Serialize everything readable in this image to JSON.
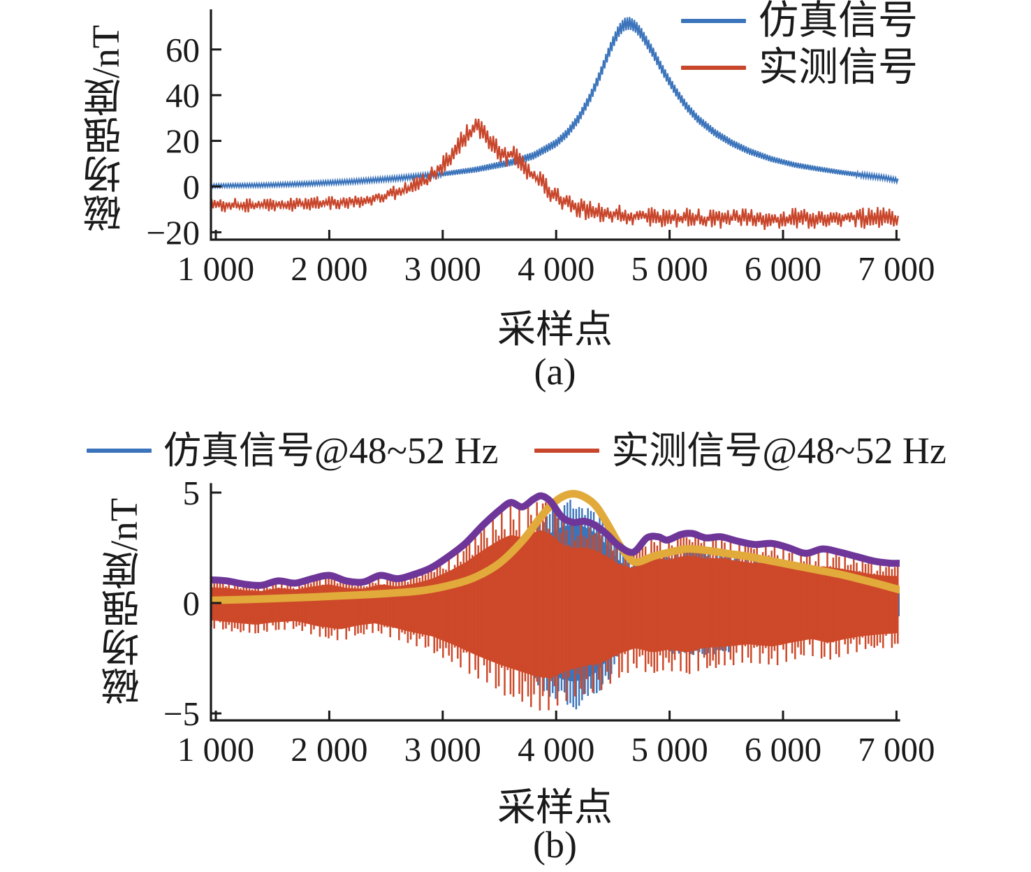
{
  "colors": {
    "simulated_blue": "#3B74BB",
    "measured_red": "#C8462B",
    "measured_red_fill": "#CD4929",
    "envelope_measured_purple": "#6F3699",
    "envelope_simulated_yellow": "#E2A93B",
    "axis_black": "#1a1a1a"
  },
  "chart_data": [
    {
      "id": "a",
      "type": "line",
      "caption": "(a)",
      "xlabel": "采样点",
      "ylabel": "磁场强度/nT",
      "xlim": [
        957,
        7025
      ],
      "ylim": [
        -23,
        77
      ],
      "grid": false,
      "legend_position": "top-right",
      "x_tick_values": [
        1000,
        2000,
        3000,
        4000,
        5000,
        6000,
        7000
      ],
      "x_tick_labels": [
        "1 000",
        "2 000",
        "3 000",
        "4 000",
        "5 000",
        "6 000",
        "7 000"
      ],
      "y_tick_values": [
        -20,
        0,
        20,
        40,
        60
      ],
      "y_tick_labels": [
        "−20",
        "0",
        "20",
        "40",
        "60"
      ],
      "legend": [
        {
          "label": "仿真信号",
          "color": "#3B74BB"
        },
        {
          "label": "实测信号",
          "color": "#C8462B"
        }
      ],
      "series": [
        {
          "name": "仿真信号",
          "style": "oscillating-band",
          "color": "#3B74BB",
          "center_keypoints": [
            [
              957,
              0.3
            ],
            [
              1400,
              0.6
            ],
            [
              1800,
              1.2
            ],
            [
              2200,
              2.2
            ],
            [
              2600,
              3.6
            ],
            [
              3000,
              5.5
            ],
            [
              3300,
              7.5
            ],
            [
              3600,
              10.5
            ],
            [
              3800,
              13.5
            ],
            [
              4000,
              19
            ],
            [
              4100,
              23.5
            ],
            [
              4200,
              30
            ],
            [
              4300,
              39
            ],
            [
              4380,
              48
            ],
            [
              4450,
              57
            ],
            [
              4500,
              63
            ],
            [
              4550,
              68
            ],
            [
              4600,
              71
            ],
            [
              4650,
              71.5
            ],
            [
              4700,
              70
            ],
            [
              4750,
              67
            ],
            [
              4850,
              59
            ],
            [
              4950,
              50
            ],
            [
              5050,
              42
            ],
            [
              5150,
              35
            ],
            [
              5250,
              29.5
            ],
            [
              5400,
              23.5
            ],
            [
              5550,
              19
            ],
            [
              5700,
              15.5
            ],
            [
              5900,
              12
            ],
            [
              6100,
              9.5
            ],
            [
              6300,
              7.8
            ],
            [
              6500,
              6.3
            ],
            [
              6700,
              5
            ],
            [
              6900,
              3.8
            ],
            [
              7025,
              2.5
            ]
          ],
          "ripple_amplitude_keypoints": [
            [
              957,
              0.7
            ],
            [
              3000,
              1.0
            ],
            [
              4000,
              1.8
            ],
            [
              4600,
              2.8
            ],
            [
              5200,
              1.9
            ],
            [
              6000,
              1.2
            ],
            [
              7025,
              0.9
            ]
          ]
        },
        {
          "name": "实测信号",
          "style": "noisy-line",
          "color": "#C8462B",
          "mean_keypoints": [
            [
              957,
              -8
            ],
            [
              1300,
              -8.3
            ],
            [
              1600,
              -8
            ],
            [
              1900,
              -7.2
            ],
            [
              2100,
              -6.8
            ],
            [
              2300,
              -5.8
            ],
            [
              2500,
              -3.8
            ],
            [
              2700,
              -1
            ],
            [
              2850,
              2.5
            ],
            [
              3000,
              9
            ],
            [
              3100,
              15
            ],
            [
              3200,
              22
            ],
            [
              3280,
              26.5
            ],
            [
              3350,
              24
            ],
            [
              3450,
              18
            ],
            [
              3550,
              13
            ],
            [
              3620,
              14.5
            ],
            [
              3700,
              9.5
            ],
            [
              3850,
              2.5
            ],
            [
              3950,
              -2.5
            ],
            [
              4050,
              -6.5
            ],
            [
              4200,
              -9.5
            ],
            [
              4400,
              -11.5
            ],
            [
              4700,
              -13
            ],
            [
              5000,
              -13.8
            ],
            [
              5400,
              -14
            ],
            [
              5800,
              -14.3
            ],
            [
              6200,
              -14
            ],
            [
              6600,
              -13.8
            ],
            [
              7025,
              -13.5
            ]
          ],
          "noise_amplitude_keypoints": [
            [
              957,
              3.2
            ],
            [
              2000,
              3.2
            ],
            [
              2600,
              3.5
            ],
            [
              3000,
              4.5
            ],
            [
              3300,
              5
            ],
            [
              3600,
              4.5
            ],
            [
              4000,
              5
            ],
            [
              4500,
              4.5
            ],
            [
              5000,
              4.5
            ],
            [
              6000,
              4.8
            ],
            [
              7025,
              4.8
            ]
          ]
        }
      ]
    },
    {
      "id": "b",
      "type": "line",
      "caption": "(b)",
      "xlabel": "采样点",
      "ylabel": "磁场强度/nT",
      "xlim": [
        957,
        7025
      ],
      "ylim": [
        -5.3,
        5.4
      ],
      "grid": false,
      "legend_position": "top",
      "x_tick_values": [
        1000,
        2000,
        3000,
        4000,
        5000,
        6000,
        7000
      ],
      "x_tick_labels": [
        "1 000",
        "2 000",
        "3 000",
        "4 000",
        "5 000",
        "6 000",
        "7 000"
      ],
      "y_tick_values": [
        -5,
        0,
        5
      ],
      "y_tick_labels": [
        "−5",
        "0",
        "5"
      ],
      "legend": [
        {
          "label": "仿真信号@48~52 Hz",
          "color": "#3B74BB"
        },
        {
          "label": "实测信号@48~52 Hz",
          "color": "#C8462B"
        }
      ],
      "series": [
        {
          "name": "仿真信号@48~52 Hz",
          "style": "carrier-comb",
          "color": "#3B74BB",
          "envelope_color": "#E2A93B",
          "envelope_keypoints": [
            [
              957,
              0.12
            ],
            [
              1400,
              0.18
            ],
            [
              1900,
              0.28
            ],
            [
              2400,
              0.4
            ],
            [
              2800,
              0.55
            ],
            [
              3100,
              0.85
            ],
            [
              3300,
              1.2
            ],
            [
              3500,
              1.8
            ],
            [
              3700,
              2.8
            ],
            [
              3850,
              3.8
            ],
            [
              3950,
              4.4
            ],
            [
              4050,
              4.8
            ],
            [
              4150,
              4.95
            ],
            [
              4250,
              4.8
            ],
            [
              4350,
              4.4
            ],
            [
              4450,
              3.6
            ],
            [
              4550,
              2.7
            ],
            [
              4650,
              2.0
            ],
            [
              4720,
              1.85
            ],
            [
              4850,
              2.1
            ],
            [
              5000,
              2.3
            ],
            [
              5150,
              2.45
            ],
            [
              5300,
              2.4
            ],
            [
              5500,
              2.25
            ],
            [
              5700,
              2.1
            ],
            [
              5900,
              1.9
            ],
            [
              6100,
              1.7
            ],
            [
              6300,
              1.5
            ],
            [
              6500,
              1.3
            ],
            [
              6700,
              1.05
            ],
            [
              6850,
              0.85
            ],
            [
              7025,
              0.6
            ]
          ],
          "envelope_symmetric": true
        },
        {
          "name": "实测信号@48~52 Hz",
          "style": "carrier-comb",
          "color": "#CD4929",
          "envelope_color": "#6F3699",
          "upper_envelope_keypoints": [
            [
              957,
              1.05
            ],
            [
              1100,
              1.0
            ],
            [
              1250,
              0.85
            ],
            [
              1400,
              0.8
            ],
            [
              1550,
              1.0
            ],
            [
              1700,
              0.9
            ],
            [
              1850,
              1.1
            ],
            [
              2000,
              1.25
            ],
            [
              2150,
              1.0
            ],
            [
              2300,
              0.95
            ],
            [
              2450,
              1.25
            ],
            [
              2600,
              1.1
            ],
            [
              2750,
              1.3
            ],
            [
              2900,
              1.6
            ],
            [
              3050,
              2.1
            ],
            [
              3200,
              2.7
            ],
            [
              3350,
              3.5
            ],
            [
              3500,
              4.2
            ],
            [
              3600,
              4.55
            ],
            [
              3700,
              4.35
            ],
            [
              3800,
              4.7
            ],
            [
              3870,
              4.85
            ],
            [
              3950,
              4.6
            ],
            [
              4050,
              3.9
            ],
            [
              4150,
              3.65
            ],
            [
              4250,
              3.7
            ],
            [
              4350,
              3.5
            ],
            [
              4450,
              3.1
            ],
            [
              4550,
              2.6
            ],
            [
              4680,
              2.3
            ],
            [
              4800,
              2.95
            ],
            [
              4900,
              3.0
            ],
            [
              4980,
              2.85
            ],
            [
              5100,
              3.1
            ],
            [
              5200,
              3.15
            ],
            [
              5320,
              2.95
            ],
            [
              5450,
              3.0
            ],
            [
              5600,
              2.8
            ],
            [
              5750,
              2.65
            ],
            [
              5900,
              2.7
            ],
            [
              6050,
              2.5
            ],
            [
              6200,
              2.25
            ],
            [
              6350,
              2.45
            ],
            [
              6500,
              2.3
            ],
            [
              6650,
              2.1
            ],
            [
              6800,
              1.9
            ],
            [
              6950,
              1.8
            ],
            [
              7025,
              1.8
            ]
          ],
          "lower_envelope_keypoints": [
            [
              957,
              -1.15
            ],
            [
              1150,
              -1.3
            ],
            [
              1350,
              -1.45
            ],
            [
              1500,
              -1.3
            ],
            [
              1700,
              -1.2
            ],
            [
              1900,
              -1.55
            ],
            [
              2100,
              -1.75
            ],
            [
              2250,
              -1.5
            ],
            [
              2400,
              -1.35
            ],
            [
              2550,
              -1.6
            ],
            [
              2700,
              -1.9
            ],
            [
              2900,
              -2.2
            ],
            [
              3100,
              -2.8
            ],
            [
              3300,
              -3.5
            ],
            [
              3500,
              -4.1
            ],
            [
              3700,
              -4.6
            ],
            [
              3850,
              -4.95
            ],
            [
              3950,
              -5.0
            ],
            [
              4100,
              -4.5
            ],
            [
              4250,
              -4.2
            ],
            [
              4400,
              -4.0
            ],
            [
              4550,
              -3.4
            ],
            [
              4700,
              -3.0
            ],
            [
              4850,
              -3.3
            ],
            [
              5000,
              -3.1
            ],
            [
              5150,
              -3.3
            ],
            [
              5300,
              -3.0
            ],
            [
              5500,
              -2.9
            ],
            [
              5700,
              -2.75
            ],
            [
              5900,
              -2.9
            ],
            [
              6100,
              -2.6
            ],
            [
              6250,
              -2.4
            ],
            [
              6400,
              -2.65
            ],
            [
              6550,
              -2.4
            ],
            [
              6700,
              -2.2
            ],
            [
              6850,
              -2.1
            ],
            [
              7025,
              -2.0
            ]
          ]
        }
      ]
    }
  ]
}
